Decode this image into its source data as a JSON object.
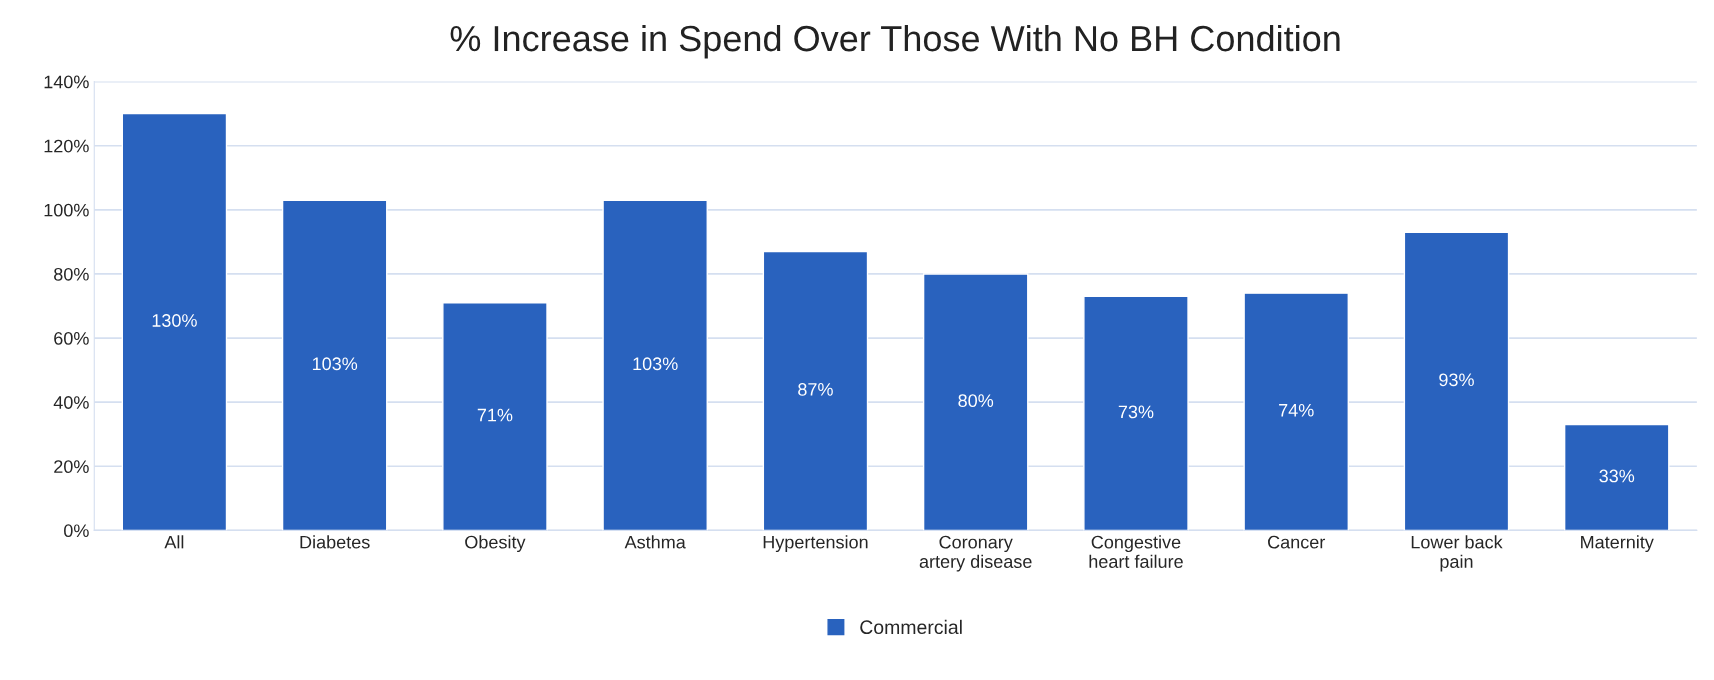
{
  "chart_data": {
    "type": "bar",
    "title": "% Increase in Spend Over Those With No BH Condition",
    "categories": [
      "All",
      "Diabetes",
      "Obesity",
      "Asthma",
      "Hypertension",
      "Coronary\nartery disease",
      "Congestive\nheart failure",
      "Cancer",
      "Lower back\npain",
      "Maternity"
    ],
    "series": [
      {
        "name": "Commercial",
        "color": "#2962be",
        "values": [
          130,
          103,
          71,
          103,
          87,
          80,
          73,
          74,
          93,
          33
        ],
        "value_labels": [
          "130%",
          "103%",
          "71%",
          "103%",
          "87%",
          "80%",
          "73%",
          "74%",
          "93%",
          "33%"
        ]
      }
    ],
    "ylim": [
      0,
      140
    ],
    "yticks": [
      {
        "value": 0,
        "label": "0%"
      },
      {
        "value": 20,
        "label": "20%"
      },
      {
        "value": 40,
        "label": "40%"
      },
      {
        "value": 60,
        "label": "60%"
      },
      {
        "value": 80,
        "label": "80%"
      },
      {
        "value": 100,
        "label": "100%"
      },
      {
        "value": 120,
        "label": "120%"
      },
      {
        "value": 140,
        "label": "140%"
      }
    ],
    "grid": "y",
    "legend": "bottom"
  }
}
